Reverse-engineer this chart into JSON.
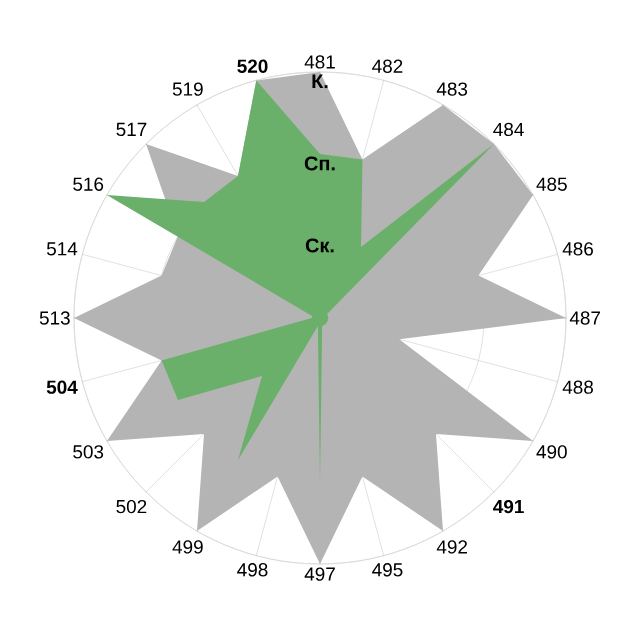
{
  "chart_data": {
    "type": "radar",
    "categories": [
      "481",
      "482",
      "483",
      "484",
      "485",
      "486",
      "487",
      "488",
      "490",
      "**491**",
      "492",
      "495",
      "497",
      "498",
      "499",
      "502",
      "503",
      "**504**",
      "513",
      "514",
      "516",
      "517",
      "519",
      "**520**"
    ],
    "series": [
      {
        "color": "#b4b4b4",
        "values": [
          3,
          2,
          3,
          3,
          3,
          2,
          3,
          1,
          3,
          2,
          3,
          2,
          3,
          2,
          3,
          2,
          3,
          2,
          3,
          2,
          2,
          3,
          2,
          3
        ]
      },
      {
        "color": "#6ab06a",
        "values": [
          2,
          2,
          1,
          3,
          0.1,
          0.1,
          0.1,
          0.1,
          0.1,
          0.1,
          0.1,
          0.1,
          2,
          0.1,
          2,
          1,
          2,
          2,
          0.1,
          0.1,
          3,
          2,
          2,
          3
        ]
      }
    ],
    "ylim": [
      0,
      3
    ],
    "yticks": [
      {
        "value": 1,
        "label": "Ск."
      },
      {
        "value": 2,
        "label": "Сп."
      },
      {
        "value": 3,
        "label": "К."
      }
    ],
    "grid": true
  }
}
